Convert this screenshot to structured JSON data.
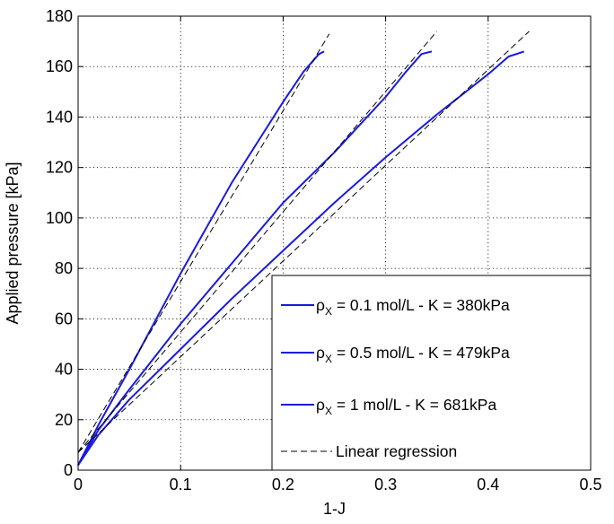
{
  "chart_data": {
    "type": "line",
    "title": "",
    "xlabel": "1-J",
    "ylabel": "Applied pressure [kPa]",
    "xlim": [
      0,
      0.5
    ],
    "ylim": [
      0,
      180
    ],
    "xticks": [
      0,
      0.1,
      0.2,
      0.3,
      0.4,
      0.5
    ],
    "xtick_labels": [
      "0",
      "0.1",
      "0.2",
      "0.3",
      "0.4",
      "0.5"
    ],
    "yticks": [
      0,
      20,
      40,
      60,
      80,
      100,
      120,
      140,
      160,
      180
    ],
    "ytick_labels": [
      "0",
      "20",
      "40",
      "60",
      "80",
      "100",
      "120",
      "140",
      "160",
      "180"
    ],
    "grid": true,
    "legend_position": "bottom-right",
    "colors": {
      "series": "#1a1adc",
      "regression": "#000000"
    },
    "series": [
      {
        "legend_prefix": "ρ",
        "legend_sub": "X",
        "name": " = 0.1 mol/L - K = 380kPa",
        "style": "solid",
        "x": [
          0,
          0.02,
          0.05,
          0.1,
          0.15,
          0.2,
          0.22,
          0.235,
          0.24
        ],
        "y": [
          2,
          18,
          40,
          78,
          114,
          146,
          158,
          165,
          166
        ]
      },
      {
        "legend_prefix": "ρ",
        "legend_sub": "X",
        "name": " = 0.5 mol/L - K = 479kPa",
        "style": "solid",
        "x": [
          0,
          0.02,
          0.05,
          0.1,
          0.15,
          0.2,
          0.25,
          0.3,
          0.32,
          0.335,
          0.345
        ],
        "y": [
          2,
          16,
          32,
          58,
          82,
          106,
          126,
          148,
          158,
          165,
          166
        ]
      },
      {
        "legend_prefix": "ρ",
        "legend_sub": "X",
        "name": " = 1 mol/L - K = 681kPa",
        "style": "solid",
        "x": [
          0,
          0.02,
          0.05,
          0.1,
          0.15,
          0.2,
          0.25,
          0.3,
          0.35,
          0.4,
          0.42,
          0.435
        ],
        "y": [
          2,
          14,
          28,
          48,
          68,
          87,
          106,
          124,
          141,
          157,
          164,
          166
        ]
      },
      {
        "name": "Linear regression",
        "style": "dashed",
        "lines": [
          {
            "x": [
              0,
              0.245
            ],
            "y": [
              7,
              173
            ]
          },
          {
            "x": [
              0,
              0.35
            ],
            "y": [
              7,
              174
            ]
          },
          {
            "x": [
              0,
              0.44
            ],
            "y": [
              7,
              174
            ]
          }
        ]
      }
    ]
  }
}
